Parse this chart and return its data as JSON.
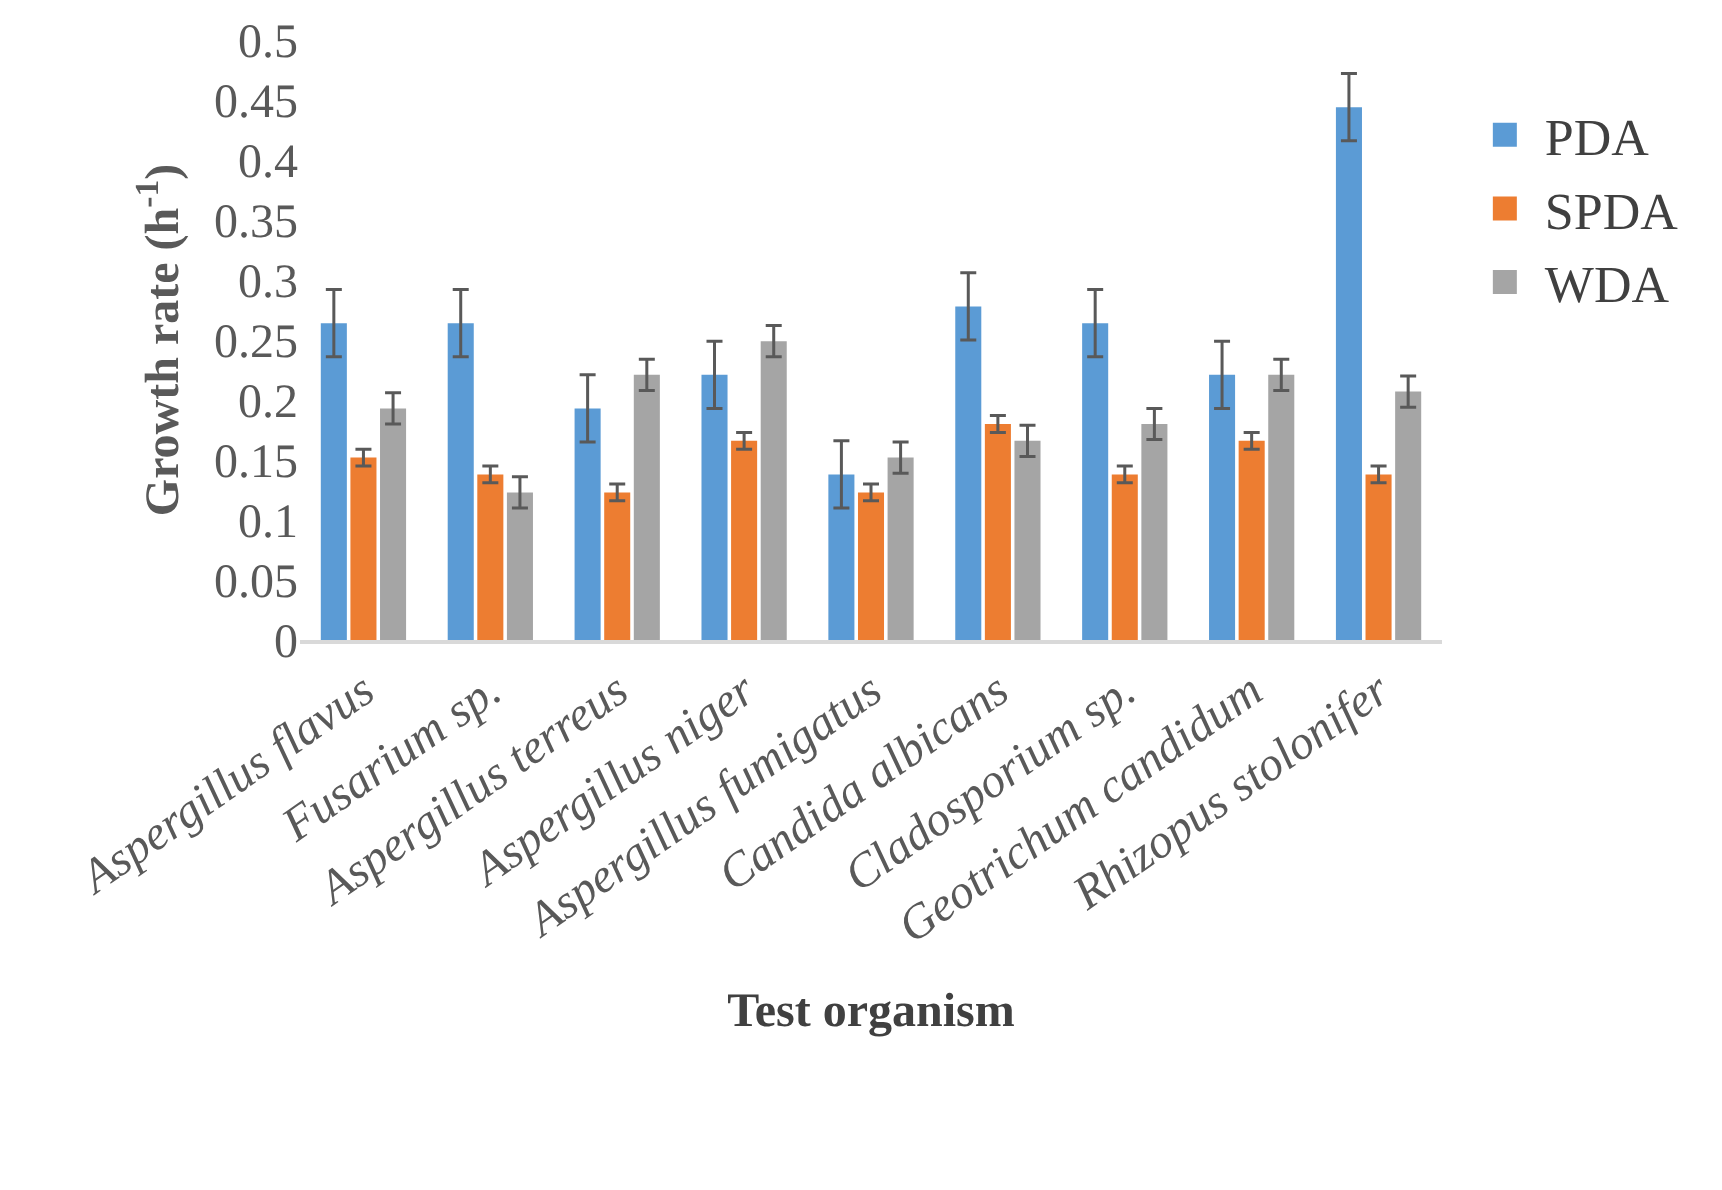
{
  "chart_data": {
    "type": "bar",
    "xlabel": "Test organism",
    "ylabel": "Growth rate (h$^{-1}$)",
    "categories": [
      "Aspergillus flavus",
      "Fusarium sp.",
      "Aspergillus terreus",
      "Aspergillus niger",
      "Aspergillus fumigatus",
      "Candida albicans",
      "Cladosporium sp.",
      "Geotrichum candidum",
      "Rhizopus stolonifer"
    ],
    "series": [
      {
        "name": "PDA",
        "color": "#5b9bd5",
        "values": [
          0.264,
          0.264,
          0.193,
          0.221,
          0.138,
          0.278,
          0.264,
          0.221,
          0.444
        ],
        "errors": [
          0.028,
          0.028,
          0.028,
          0.028,
          0.028,
          0.028,
          0.028,
          0.028,
          0.028
        ]
      },
      {
        "name": "SPDA",
        "color": "#ed7d31",
        "values": [
          0.152,
          0.138,
          0.123,
          0.166,
          0.123,
          0.18,
          0.138,
          0.166,
          0.138
        ],
        "errors": [
          0.007,
          0.007,
          0.007,
          0.007,
          0.007,
          0.007,
          0.007,
          0.007,
          0.007
        ]
      },
      {
        "name": "WDA",
        "color": "#a5a5a5",
        "values": [
          0.193,
          0.123,
          0.221,
          0.249,
          0.152,
          0.166,
          0.18,
          0.221,
          0.207
        ],
        "errors": [
          0.013,
          0.013,
          0.013,
          0.013,
          0.013,
          0.013,
          0.013,
          0.013,
          0.013
        ]
      }
    ],
    "ylim": [
      0,
      0.5
    ],
    "yticks": [
      0,
      0.05,
      0.1,
      0.15,
      0.2,
      0.25,
      0.3,
      0.35,
      0.4,
      0.45,
      0.5
    ],
    "grid": false,
    "legend": "right"
  }
}
